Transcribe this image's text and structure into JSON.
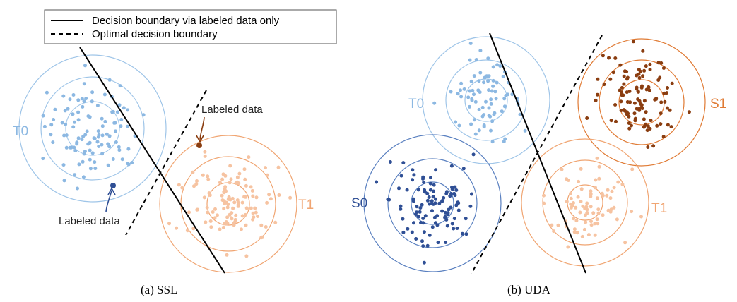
{
  "legend": {
    "solid_label": "Decision boundary via labeled data only",
    "dashed_label": "Optimal decision boundary"
  },
  "panel_a": {
    "caption": "(a)  SSL",
    "cluster_t0_label": "T0",
    "cluster_t1_label": "T1",
    "labeled_top_label": "Labeled data",
    "labeled_bottom_label": "Labeled data"
  },
  "panel_b": {
    "caption": "(b)  UDA",
    "cluster_t0_label": "T0",
    "cluster_s0_label": "S0",
    "cluster_s1_label": "S1",
    "cluster_t1_label": "T1"
  },
  "colors": {
    "t0_light_blue": "#8cb8e2",
    "t0_ring": "#9fc5e8",
    "s0_dark_blue": "#2f4f95",
    "s0_ring": "#5a80c0",
    "t1_light_orange": "#f6c3a1",
    "t1_ring": "#f0a572",
    "s1_brown": "#8a3d10",
    "s1_ring": "#e07b35",
    "boundary": "#000000"
  }
}
